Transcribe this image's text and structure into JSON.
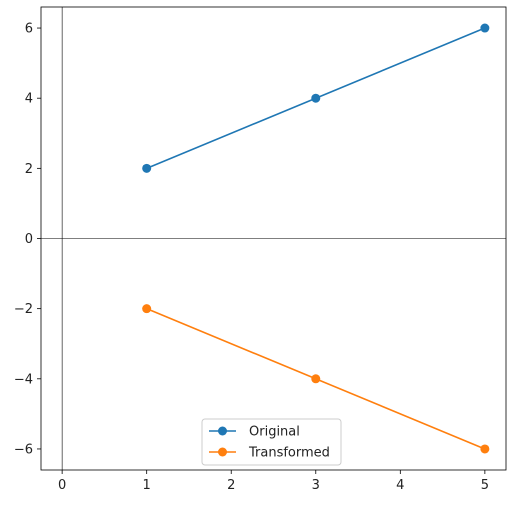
{
  "chart_data": {
    "type": "line",
    "title": "",
    "xlabel": "",
    "ylabel": "",
    "xlim": [
      -0.25,
      5.25
    ],
    "ylim": [
      -6.6,
      6.6
    ],
    "x_ticks": [
      0,
      1,
      2,
      3,
      4,
      5
    ],
    "y_ticks": [
      -6,
      -4,
      -2,
      0,
      2,
      4,
      6
    ],
    "x_tick_labels": [
      "0",
      "1",
      "2",
      "3",
      "4",
      "5"
    ],
    "y_tick_labels": [
      "−6",
      "−4",
      "−2",
      "0",
      "2",
      "4",
      "6"
    ],
    "grid": false,
    "reference_lines": {
      "x": 0,
      "y": 0
    },
    "legend_position": "bottom-center",
    "series": [
      {
        "name": "Original",
        "color": "#1f77b4",
        "marker": "circle",
        "x": [
          1,
          3,
          5
        ],
        "y": [
          2,
          4,
          6
        ]
      },
      {
        "name": "Transformed",
        "color": "#ff7f0e",
        "marker": "circle",
        "x": [
          1,
          3,
          5
        ],
        "y": [
          -2,
          -4,
          -6
        ]
      }
    ]
  }
}
